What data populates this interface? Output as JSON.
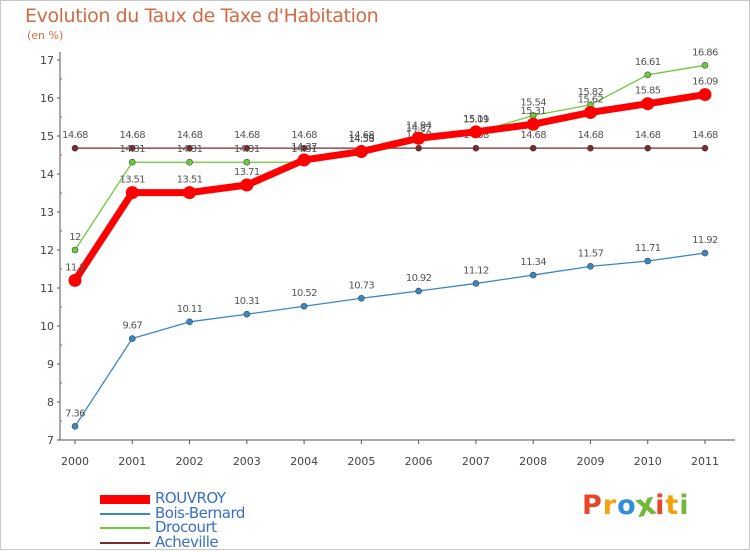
{
  "title": "Evolution du Taux de Taxe d'Habitation",
  "unit": "(en %)",
  "logo": {
    "text": "Proxiti",
    "colors": [
      "#e8462a",
      "#f2a20c",
      "#2f8fd8",
      "#74b83a",
      "#e8462a",
      "#f2a20c",
      "#74b83a"
    ]
  },
  "chart_data": {
    "type": "line",
    "title": "Evolution du Taux de Taxe d'Habitation",
    "ylabel": "(en %)",
    "xlabel": "",
    "ylim": [
      7,
      17
    ],
    "grid": false,
    "legend_position": "bottom-left",
    "x": [
      "2000",
      "2001",
      "2002",
      "2003",
      "2004",
      "2005",
      "2006",
      "2007",
      "2008",
      "2009",
      "2010",
      "2011"
    ],
    "yticks": [
      "7",
      "8",
      "9",
      "10",
      "11",
      "12",
      "13",
      "14",
      "15",
      "16",
      "17"
    ],
    "series": [
      {
        "name": "ROUVROY",
        "color": "#ff0000",
        "thick": true,
        "values": [
          11.2,
          13.51,
          13.51,
          13.71,
          14.37,
          14.59,
          14.94,
          15.11,
          15.31,
          15.62,
          15.85,
          16.09
        ],
        "labels": [
          "11.2",
          "13.51",
          "13.51",
          "13.71",
          "14.37",
          "14.59",
          "14.94",
          "15.11",
          "15.31",
          "15.62",
          "15.85",
          "16.09"
        ]
      },
      {
        "name": "Bois-Bernard",
        "color": "#3a87c8",
        "thick": false,
        "values": [
          7.36,
          9.67,
          10.11,
          10.31,
          10.52,
          10.73,
          10.92,
          11.12,
          11.34,
          11.57,
          11.71,
          11.92
        ],
        "labels": [
          "7.36",
          "9.67",
          "10.11",
          "10.31",
          "10.52",
          "10.73",
          "10.92",
          "11.12",
          "11.34",
          "11.57",
          "11.71",
          "11.92"
        ]
      },
      {
        "name": "Drocourt",
        "color": "#6ccc3a",
        "thick": false,
        "values": [
          12,
          14.31,
          14.31,
          14.31,
          14.31,
          14.58,
          14.87,
          15.09,
          15.54,
          15.82,
          16.61,
          16.86
        ],
        "labels": [
          "12",
          "14.31",
          "14.31",
          "14.31",
          "14.31",
          "14.58",
          "14.87",
          "15.09",
          "15.54",
          "15.82",
          "16.61",
          "16.86"
        ]
      },
      {
        "name": "Acheville",
        "color": "#7a2a2a",
        "thick": false,
        "values": [
          14.68,
          14.68,
          14.68,
          14.68,
          14.68,
          14.68,
          14.68,
          14.68,
          14.68,
          14.68,
          14.68,
          14.68
        ],
        "labels": [
          "14.68",
          "14.68",
          "14.68",
          "14.68",
          "14.68",
          "14.68",
          "14.68",
          "14.68",
          "14.68",
          "14.68",
          "14.68",
          "14.68"
        ]
      }
    ]
  }
}
